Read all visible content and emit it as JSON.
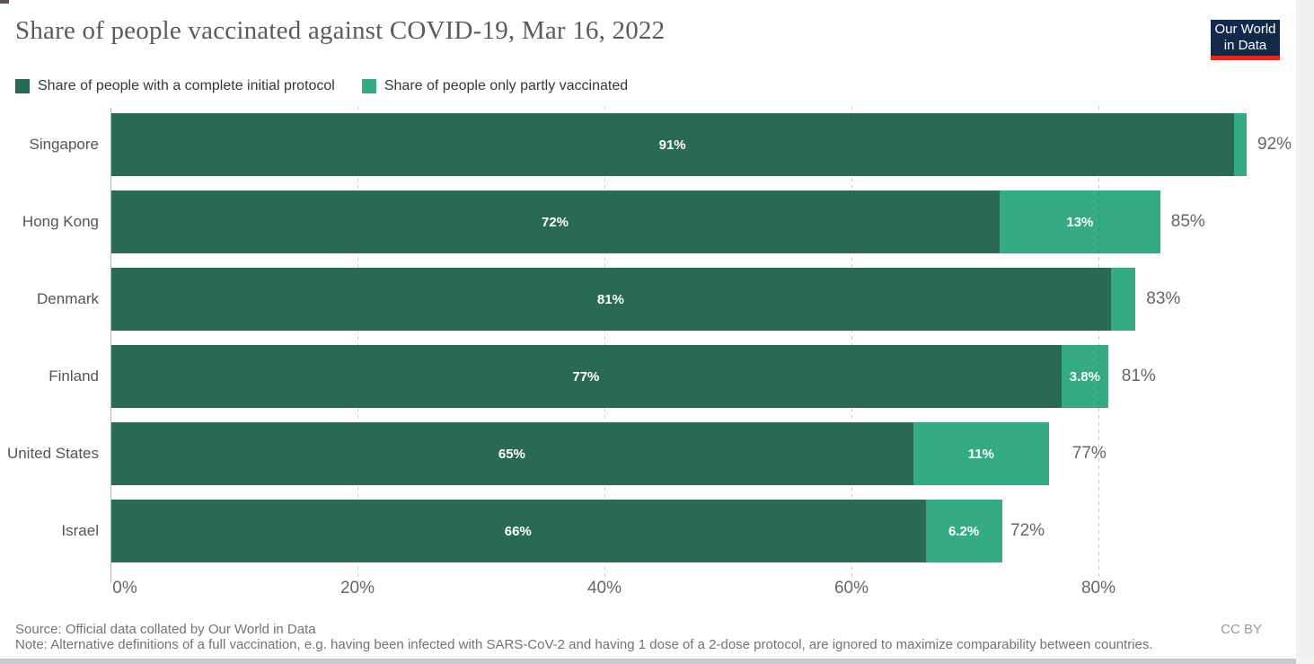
{
  "header": {
    "title": "Share of people vaccinated against COVID-19, Mar 16, 2022",
    "logo": {
      "line1": "Our World",
      "line2": "in Data",
      "bg_color": "#12294b",
      "accent_color": "#dc2c20"
    }
  },
  "legend": [
    {
      "label": "Share of people with a complete initial protocol",
      "color": "#2a6a54"
    },
    {
      "label": "Share of people only partly vaccinated",
      "color": "#35ab84"
    }
  ],
  "chart_data": {
    "type": "bar",
    "orientation": "horizontal",
    "stacked": true,
    "title": "Share of people vaccinated against COVID-19, Mar 16, 2022",
    "categories": [
      "Singapore",
      "Hong Kong",
      "Denmark",
      "Finland",
      "United States",
      "Israel"
    ],
    "series": [
      {
        "name": "Share of people with a complete initial protocol",
        "color": "#2a6a54",
        "values": [
          91,
          72,
          81,
          77,
          65,
          66
        ],
        "labels": [
          "91%",
          "72%",
          "81%",
          "77%",
          "65%",
          "66%"
        ]
      },
      {
        "name": "Share of people only partly vaccinated",
        "color": "#35ab84",
        "values": [
          1,
          13,
          2,
          3.8,
          11,
          6.2
        ],
        "labels": [
          "",
          "13%",
          "",
          "3.8%",
          "11%",
          "6.2%"
        ]
      }
    ],
    "totals": [
      92,
      85,
      83,
      81,
      77,
      72
    ],
    "total_labels": [
      "92%",
      "85%",
      "83%",
      "81%",
      "77%",
      "72%"
    ],
    "xlim": [
      0,
      96
    ],
    "grid": "dashed-vertical",
    "legend_position": "top",
    "ticks": [
      {
        "label": "0%",
        "value": 0
      },
      {
        "label": "20%",
        "value": 20
      },
      {
        "label": "40%",
        "value": 40
      },
      {
        "label": "60%",
        "value": 60
      },
      {
        "label": "80%",
        "value": 80
      }
    ]
  },
  "footer": {
    "source": "Source: Official data collated by Our World in Data",
    "note": "Note: Alternative definitions of a full vaccination, e.g. having been infected with SARS-CoV-2 and having 1 dose of a 2-dose protocol, are ignored to maximize comparability between countries.",
    "license": "CC BY"
  }
}
